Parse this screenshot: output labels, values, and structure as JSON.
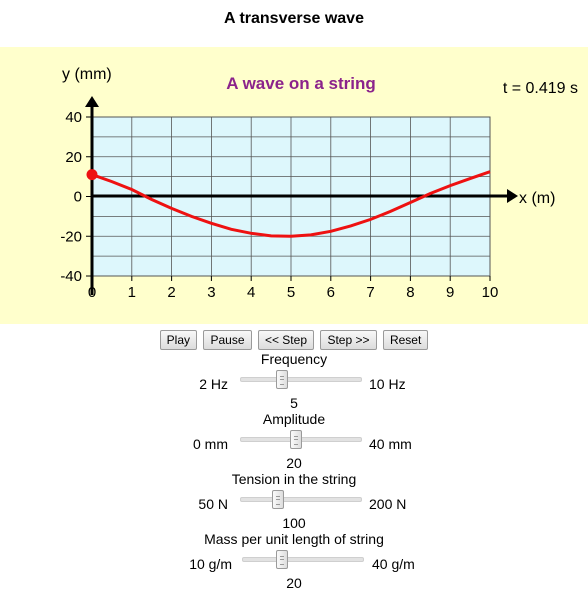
{
  "title": "A transverse wave",
  "graph": {
    "heading": "A wave on a string",
    "time_readout": "t = 0.419 s",
    "y_axis_label": "y (mm)",
    "x_axis_label": "x (m)",
    "y_ticks": [
      "40",
      "20",
      "0",
      "-20",
      "-40"
    ],
    "x_ticks": [
      "0",
      "1",
      "2",
      "3",
      "4",
      "5",
      "6",
      "7",
      "8",
      "9",
      "10"
    ],
    "heading_color": "#8b238b",
    "wave_color": "#ee1111",
    "grid_bg": "#ddf7fc"
  },
  "chart_data": {
    "type": "line",
    "xlim": [
      0,
      10
    ],
    "ylim": [
      -40,
      40
    ],
    "xlabel": "x (m)",
    "ylabel": "y (mm)",
    "grid": true,
    "series": [
      {
        "x": [
          0,
          0.5,
          1,
          1.5,
          2,
          2.5,
          3,
          3.5,
          4,
          4.5,
          5,
          5.5,
          6,
          6.5,
          7,
          7.5,
          8,
          8.5,
          9,
          9.5,
          10
        ],
        "y": [
          11,
          7.5,
          3.5,
          -1.5,
          -6,
          -10,
          -13.5,
          -16.5,
          -18.5,
          -19.8,
          -20,
          -19.3,
          -17.5,
          -14.8,
          -11.5,
          -7.5,
          -3,
          1.5,
          5.5,
          9,
          12.5
        ]
      }
    ],
    "marker_point": {
      "x": 0,
      "y": 11
    }
  },
  "controls": {
    "play": "Play",
    "pause": "Pause",
    "step_back": "<< Step",
    "step_fwd": "Step >>",
    "reset": "Reset"
  },
  "sliders": [
    {
      "title": "Frequency",
      "min_label": "2 Hz",
      "max_label": "10 Hz",
      "value": "5",
      "min": 2,
      "max": 10,
      "current": 5
    },
    {
      "title": "Amplitude",
      "min_label": "0 mm",
      "max_label": "40 mm",
      "value": "20",
      "min": 0,
      "max": 40,
      "current": 20
    },
    {
      "title": "Tension in the string",
      "min_label": "50 N",
      "max_label": "200 N",
      "value": "100",
      "min": 50,
      "max": 200,
      "current": 100
    },
    {
      "title": "Mass per unit length of string",
      "min_label": "10 g/m",
      "max_label": "40 g/m",
      "value": "20",
      "min": 10,
      "max": 40,
      "current": 20
    }
  ]
}
